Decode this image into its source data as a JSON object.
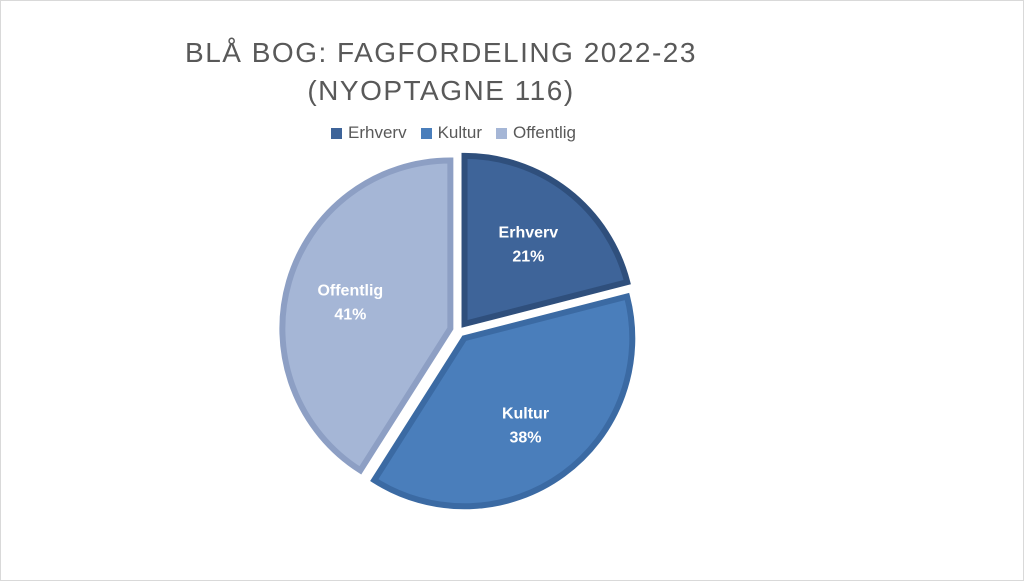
{
  "chart_data": {
    "type": "pie",
    "title_line1": "BLÅ BOG: FAGFORDELING 2022-23",
    "title_line2": "(NYOPTAGNE 116)",
    "legend_position": "top",
    "categories": [
      "Erhverv",
      "Kultur",
      "Offentlig"
    ],
    "values": [
      21,
      38,
      41
    ],
    "value_labels": [
      "21%",
      "38%",
      "41%"
    ],
    "colors": [
      "#3e6499",
      "#4a7ebb",
      "#a5b6d6"
    ],
    "border_colors": [
      "#2f4f7c",
      "#3b6aa3",
      "#8d9fc4"
    ]
  }
}
